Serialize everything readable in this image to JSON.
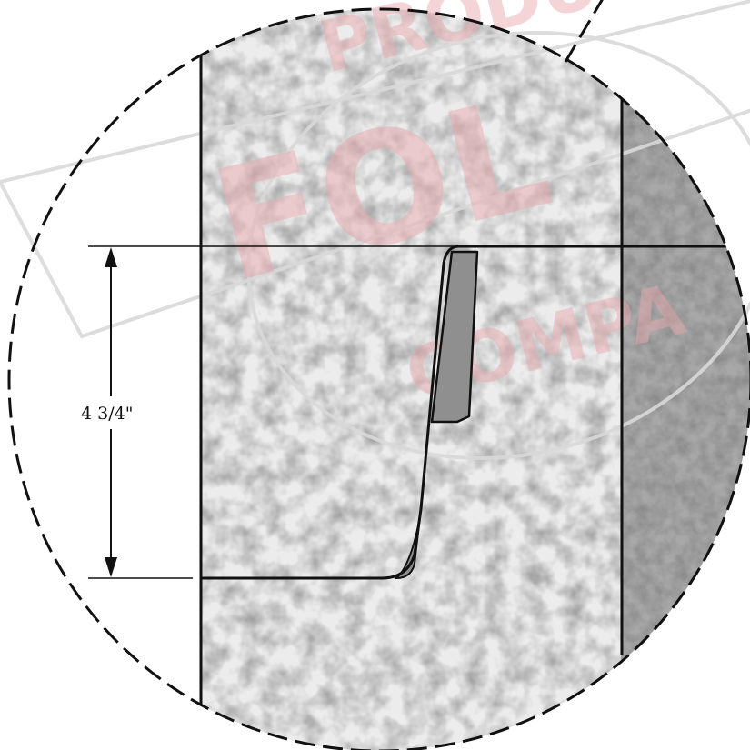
{
  "dimension": {
    "label": "4 3/4\""
  },
  "watermark": {
    "top_text": "PRODUCT",
    "middle_text": "FOL",
    "bottom_text": "COMPA",
    "color": "#e8a8ae"
  },
  "colors": {
    "line": "#111111",
    "stone_light": "#e9e9e9",
    "stone_dark": "#9e9e9e",
    "nosing_fill": "#8f8f8f"
  }
}
